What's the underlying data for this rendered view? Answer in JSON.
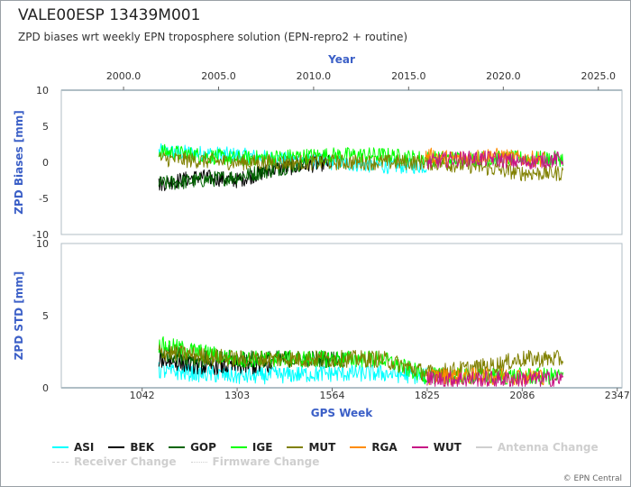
{
  "header": {
    "title": "VALE00ESP 13439M001",
    "subtitle": "ZPD biases wrt weekly EPN troposphere solution (EPN-repro2 + routine)"
  },
  "credit": "© EPN Central",
  "colors": {
    "ASI": "#00ffff",
    "BEK": "#000000",
    "GOP": "#006400",
    "IGE": "#00ff00",
    "MUT": "#808000",
    "RGA": "#ff8c00",
    "WUT": "#c71585",
    "axis_label": "#3b5fc7",
    "faded": "#cfcfcf"
  },
  "legend": {
    "row1": [
      {
        "label": "ASI",
        "series": "ASI",
        "style": "solid"
      },
      {
        "label": "BEK",
        "series": "BEK",
        "style": "solid"
      },
      {
        "label": "GOP",
        "series": "GOP",
        "style": "solid"
      },
      {
        "label": "IGE",
        "series": "IGE",
        "style": "solid"
      },
      {
        "label": "MUT",
        "series": "MUT",
        "style": "solid"
      },
      {
        "label": "RGA",
        "series": "RGA",
        "style": "solid"
      },
      {
        "label": "WUT",
        "series": "WUT",
        "style": "solid"
      },
      {
        "label": "Antenna Change",
        "series": "",
        "style": "faded"
      }
    ],
    "row2": [
      {
        "label": "Receiver Change",
        "series": "",
        "style": "dash"
      },
      {
        "label": "Firmware Change",
        "series": "",
        "style": "dot"
      }
    ]
  },
  "chart_data": [
    {
      "type": "line",
      "panel": "biases",
      "title": "",
      "top_axis_label": "Year",
      "top_ticks": [
        "2000.0",
        "2005.0",
        "2010.0",
        "2015.0",
        "2020.0",
        "2025.0"
      ],
      "top_tick_weeks": [
        991,
        1252,
        1513,
        1774,
        2034,
        2295
      ],
      "ylabel": "ZPD Biases [mm]",
      "yticks": [
        10,
        5,
        0,
        -5,
        -10
      ],
      "ylim": [
        -10,
        10
      ],
      "xlim": [
        820,
        2360
      ],
      "series": [
        {
          "name": "ASI",
          "x": [
            1088,
            1303,
            1400,
            1564,
            1700,
            1780,
            1825
          ],
          "y": [
            1.5,
            1.0,
            0.5,
            0.0,
            -0.5,
            -0.5,
            -0.5
          ]
        },
        {
          "name": "BEK",
          "x": [
            1088,
            1200,
            1303,
            1400,
            1564
          ],
          "y": [
            -3.0,
            -2.0,
            -2.5,
            -1.0,
            0.0
          ]
        },
        {
          "name": "GOP",
          "x": [
            1088,
            1200,
            1303,
            1400,
            1500
          ],
          "y": [
            -3.0,
            -2.5,
            -2.0,
            -1.0,
            0.0
          ]
        },
        {
          "name": "IGE",
          "x": [
            1088,
            1303,
            1564,
            1700,
            1825,
            1950,
            2086,
            2200
          ],
          "y": [
            1.5,
            0.5,
            1.0,
            1.0,
            0.5,
            0.5,
            0.5,
            0.5
          ]
        },
        {
          "name": "MUT",
          "x": [
            1088,
            1303,
            1564,
            1825,
            1950,
            2086,
            2200
          ],
          "y": [
            0.5,
            0.0,
            0.0,
            0.0,
            -0.5,
            -1.5,
            -1.5
          ]
        },
        {
          "name": "RGA",
          "x": [
            1820,
            1900,
            2000,
            2086,
            2150
          ],
          "y": [
            1.0,
            0.5,
            1.0,
            0.5,
            0.5
          ]
        },
        {
          "name": "WUT",
          "x": [
            1825,
            1900,
            2000,
            2086,
            2200
          ],
          "y": [
            0.0,
            0.5,
            0.5,
            0.0,
            0.5
          ]
        }
      ]
    },
    {
      "type": "line",
      "panel": "std",
      "xlabel": "GPS Week",
      "xticks": [
        1042,
        1303,
        1564,
        1825,
        2086,
        2347
      ],
      "ylabel": "ZPD STD [mm]",
      "yticks": [
        10,
        5,
        0
      ],
      "ylim": [
        0,
        10
      ],
      "xlim": [
        820,
        2360
      ],
      "series": [
        {
          "name": "ASI",
          "x": [
            1088,
            1303,
            1564,
            1700,
            1825
          ],
          "y": [
            1.2,
            0.8,
            1.0,
            1.0,
            0.8
          ]
        },
        {
          "name": "BEK",
          "x": [
            1088,
            1200,
            1303,
            1400
          ],
          "y": [
            2.0,
            1.5,
            1.5,
            1.5
          ]
        },
        {
          "name": "GOP",
          "x": [
            1088,
            1200,
            1303,
            1400,
            1600
          ],
          "y": [
            2.5,
            2.0,
            2.0,
            2.0,
            2.0
          ]
        },
        {
          "name": "IGE",
          "x": [
            1088,
            1303,
            1564,
            1700,
            1825,
            2086,
            2200
          ],
          "y": [
            3.0,
            2.0,
            2.0,
            2.0,
            0.8,
            0.8,
            0.8
          ]
        },
        {
          "name": "MUT",
          "x": [
            1088,
            1303,
            1564,
            1700,
            1825,
            2000,
            2086,
            2200
          ],
          "y": [
            2.5,
            2.0,
            2.0,
            2.0,
            1.0,
            1.5,
            2.0,
            2.0
          ]
        },
        {
          "name": "RGA",
          "x": [
            1825,
            1900,
            2000,
            2086,
            2150
          ],
          "y": [
            0.8,
            0.8,
            0.8,
            0.8,
            0.8
          ]
        },
        {
          "name": "WUT",
          "x": [
            1825,
            1900,
            2000,
            2086,
            2200
          ],
          "y": [
            0.6,
            0.6,
            0.6,
            0.6,
            0.6
          ]
        }
      ]
    }
  ]
}
